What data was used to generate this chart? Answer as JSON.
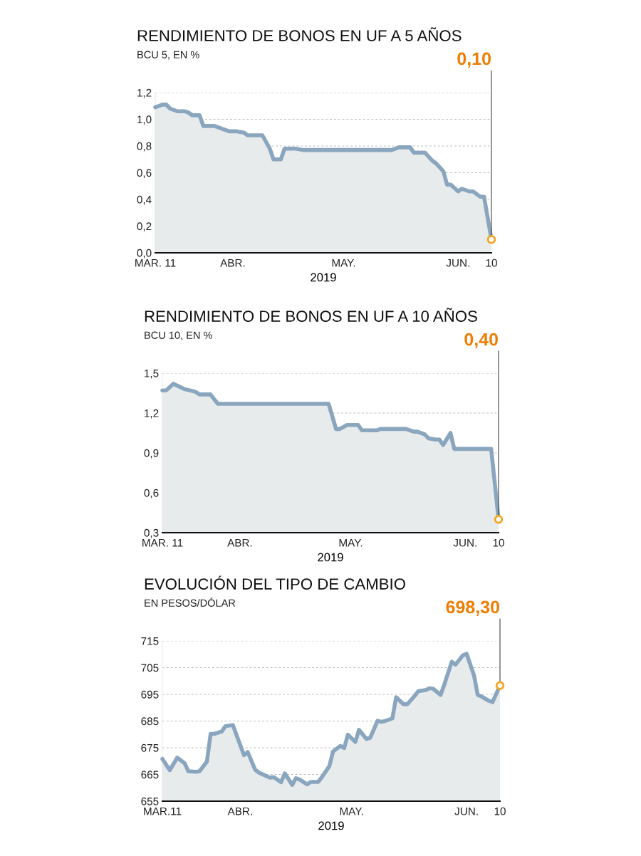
{
  "chart_data": [
    {
      "type": "area",
      "title": "RENDIMIENTO DE BONOS EN UF A 5 AÑOS",
      "subtitle": "BCU 5, EN %",
      "xlabel": "2019",
      "x": [
        "2019-03-11",
        "2019-03-13",
        "2019-03-14",
        "2019-03-15",
        "2019-03-17",
        "2019-03-19",
        "2019-03-20",
        "2019-03-21",
        "2019-03-23",
        "2019-03-24",
        "2019-03-27",
        "2019-03-29",
        "2019-03-31",
        "2019-04-02",
        "2019-04-04",
        "2019-04-05",
        "2019-04-09",
        "2019-04-11",
        "2019-04-12",
        "2019-04-14",
        "2019-04-15",
        "2019-04-18",
        "2019-04-20",
        "2019-05-14",
        "2019-05-16",
        "2019-05-19",
        "2019-05-20",
        "2019-05-23",
        "2019-05-25",
        "2019-05-26",
        "2019-05-28",
        "2019-05-29",
        "2019-05-30",
        "2019-06-01",
        "2019-06-02",
        "2019-06-04",
        "2019-06-05",
        "2019-06-07",
        "2019-06-08",
        "2019-06-10"
      ],
      "series": [
        {
          "color": "#8aa6bf",
          "values": [
            1.09,
            1.11,
            1.11,
            1.08,
            1.06,
            1.06,
            1.05,
            1.03,
            1.03,
            0.95,
            0.95,
            0.93,
            0.91,
            0.91,
            0.9,
            0.88,
            0.88,
            0.78,
            0.7,
            0.7,
            0.78,
            0.78,
            0.77,
            0.77,
            0.79,
            0.79,
            0.75,
            0.75,
            0.69,
            0.67,
            0.61,
            0.51,
            0.51,
            0.46,
            0.48,
            0.46,
            0.46,
            0.42,
            0.42,
            0.1
          ]
        }
      ],
      "xlim": [
        "2019-03-11",
        "2019-06-10"
      ],
      "xticks": [
        {
          "value": "2019-03-11",
          "label": "MAR. 11"
        },
        {
          "value": "2019-04-01",
          "label": "ABR."
        },
        {
          "value": "2019-05-01",
          "label": "MAY."
        },
        {
          "value": "2019-06-01",
          "label": "JUN."
        },
        {
          "value": "2019-06-10",
          "label": "10"
        }
      ],
      "ylim": [
        0,
        1.2
      ],
      "yticks": [
        {
          "value": 0,
          "label": "0,0"
        },
        {
          "value": 0.2,
          "label": "0,2"
        },
        {
          "value": 0.4,
          "label": "0,4"
        },
        {
          "value": 0.6,
          "label": "0,6"
        },
        {
          "value": 0.8,
          "label": "0,8"
        },
        {
          "value": 1.0,
          "label": "1,0"
        },
        {
          "value": 1.2,
          "label": "1,2"
        }
      ],
      "annotations": [
        {
          "text": "0,10",
          "x": "2019-06-10",
          "y": 0.1
        }
      ],
      "grid": "y",
      "legend": false
    },
    {
      "type": "area",
      "title": "RENDIMIENTO DE BONOS EN UF A 10 AÑOS",
      "subtitle": "BCU 10, EN %",
      "xlabel": "2019",
      "x": [
        "2019-03-11",
        "2019-03-12",
        "2019-03-14",
        "2019-03-17",
        "2019-03-20",
        "2019-03-21",
        "2019-03-24",
        "2019-03-26",
        "2019-04-25",
        "2019-04-27",
        "2019-04-28",
        "2019-04-30",
        "2019-05-03",
        "2019-05-04",
        "2019-05-08",
        "2019-05-09",
        "2019-05-16",
        "2019-05-18",
        "2019-05-19",
        "2019-05-21",
        "2019-05-22",
        "2019-05-24",
        "2019-05-25",
        "2019-05-26",
        "2019-05-28",
        "2019-05-29",
        "2019-06-08",
        "2019-06-10"
      ],
      "series": [
        {
          "color": "#8aa6bf",
          "values": [
            1.37,
            1.37,
            1.42,
            1.38,
            1.36,
            1.34,
            1.34,
            1.27,
            1.27,
            1.08,
            1.08,
            1.11,
            1.11,
            1.07,
            1.07,
            1.08,
            1.08,
            1.06,
            1.06,
            1.04,
            1.01,
            1.0,
            1.0,
            0.96,
            1.05,
            0.93,
            0.93,
            0.4
          ]
        }
      ],
      "xlim": [
        "2019-03-11",
        "2019-06-10"
      ],
      "xticks": [
        {
          "value": "2019-03-11",
          "label": "MAR. 11"
        },
        {
          "value": "2019-04-01",
          "label": "ABR."
        },
        {
          "value": "2019-05-01",
          "label": "MAY."
        },
        {
          "value": "2019-06-01",
          "label": "JUN."
        },
        {
          "value": "2019-06-10",
          "label": "10"
        }
      ],
      "ylim": [
        0.3,
        1.5
      ],
      "yticks": [
        {
          "value": 0.3,
          "label": "0,3"
        },
        {
          "value": 0.6,
          "label": "0,6"
        },
        {
          "value": 0.9,
          "label": "0,9"
        },
        {
          "value": 1.2,
          "label": "1,2"
        },
        {
          "value": 1.5,
          "label": "1,5"
        }
      ],
      "annotations": [
        {
          "text": "0,40",
          "x": "2019-06-10",
          "y": 0.4
        }
      ],
      "grid": "y",
      "legend": false
    },
    {
      "type": "area",
      "title": "EVOLUCIÓN DEL TIPO DE CAMBIO",
      "subtitle": "EN PESOS/DÓLAR",
      "xlabel": "2019",
      "x": [
        "2019-03-11",
        "2019-03-13",
        "2019-03-15",
        "2019-03-17",
        "2019-03-18",
        "2019-03-20",
        "2019-03-21",
        "2019-03-23",
        "2019-03-24",
        "2019-03-25",
        "2019-03-27",
        "2019-03-28",
        "2019-03-30",
        "2019-03-31",
        "2019-04-02",
        "2019-04-03",
        "2019-04-05",
        "2019-04-06",
        "2019-04-09",
        "2019-04-10",
        "2019-04-12",
        "2019-04-13",
        "2019-04-15",
        "2019-04-16",
        "2019-04-17",
        "2019-04-19",
        "2019-04-20",
        "2019-04-22",
        "2019-04-23",
        "2019-04-25",
        "2019-04-26",
        "2019-04-28",
        "2019-04-29",
        "2019-04-30",
        "2019-05-02",
        "2019-05-03",
        "2019-05-05",
        "2019-05-06",
        "2019-05-08",
        "2019-05-09",
        "2019-05-10",
        "2019-05-12",
        "2019-05-13",
        "2019-05-15",
        "2019-05-16",
        "2019-05-18",
        "2019-05-19",
        "2019-05-21",
        "2019-05-22",
        "2019-05-23",
        "2019-05-25",
        "2019-05-26",
        "2019-05-28",
        "2019-05-29",
        "2019-05-31",
        "2019-06-01",
        "2019-06-03",
        "2019-06-04",
        "2019-06-05",
        "2019-06-07",
        "2019-06-08",
        "2019-06-10"
      ],
      "series": [
        {
          "color": "#8aa6bf",
          "values": [
            670.8,
            666.6,
            671.3,
            669.2,
            666.2,
            666.0,
            666.2,
            669.8,
            680.2,
            680.2,
            681.1,
            683.1,
            683.5,
            679.7,
            672.2,
            673.4,
            666.8,
            665.7,
            663.8,
            664.0,
            662.1,
            665.4,
            661.1,
            663.6,
            663.1,
            661.3,
            662.2,
            662.2,
            664.0,
            668.1,
            673.6,
            675.7,
            674.9,
            679.9,
            677.2,
            681.7,
            678.3,
            678.7,
            685.1,
            684.7,
            685.0,
            686.0,
            693.9,
            691.3,
            691.3,
            694.4,
            696.2,
            696.6,
            697.3,
            697.1,
            694.8,
            698.7,
            707.2,
            706.1,
            709.6,
            710.2,
            702.1,
            694.8,
            694.2,
            692.6,
            692.1,
            698.3
          ]
        }
      ],
      "xlim": [
        "2019-03-11",
        "2019-06-10"
      ],
      "xticks": [
        {
          "value": "2019-03-11",
          "label": "MAR.11"
        },
        {
          "value": "2019-04-01",
          "label": "ABR."
        },
        {
          "value": "2019-05-01",
          "label": "MAY."
        },
        {
          "value": "2019-06-01",
          "label": "JUN."
        },
        {
          "value": "2019-06-10",
          "label": "10"
        }
      ],
      "ylim": [
        655,
        715
      ],
      "yticks": [
        655,
        665,
        675,
        685,
        695,
        705,
        715
      ],
      "annotations": [
        {
          "text": "698,30",
          "x": "2019-06-10",
          "y": 698.3
        }
      ],
      "grid": "y",
      "legend": false
    }
  ]
}
